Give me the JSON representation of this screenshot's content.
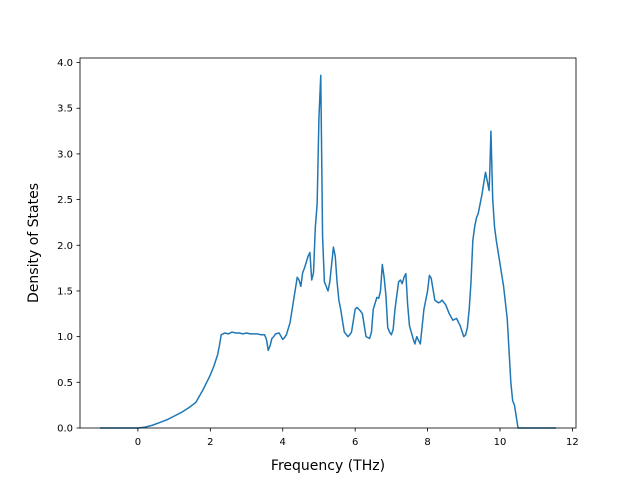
{
  "chart_data": {
    "type": "line",
    "title": "",
    "xlabel": "Frequency (THz)",
    "ylabel": "Density of States",
    "xlim": [
      -1.6,
      12.1
    ],
    "ylim": [
      0.0,
      4.05
    ],
    "xticks": [
      0,
      2,
      4,
      6,
      8,
      10,
      12
    ],
    "yticks": [
      0.0,
      0.5,
      1.0,
      1.5,
      2.0,
      2.5,
      3.0,
      3.5,
      4.0
    ],
    "xtick_labels": [
      "0",
      "2",
      "4",
      "6",
      "8",
      "10",
      "12"
    ],
    "ytick_labels": [
      "0.0",
      "0.5",
      "1.0",
      "1.5",
      "2.0",
      "2.5",
      "3.0",
      "3.5",
      "4.0"
    ],
    "grid": false,
    "series": [
      {
        "color": "#1f77b4",
        "x": [
          -1.05,
          -0.5,
          0.0,
          0.2,
          0.4,
          0.6,
          0.8,
          1.0,
          1.2,
          1.4,
          1.6,
          1.7,
          1.8,
          1.9,
          2.0,
          2.1,
          2.2,
          2.25,
          2.3,
          2.35,
          2.4,
          2.5,
          2.6,
          2.7,
          2.8,
          2.9,
          3.0,
          3.1,
          3.2,
          3.3,
          3.4,
          3.5,
          3.55,
          3.6,
          3.65,
          3.7,
          3.75,
          3.8,
          3.9,
          4.0,
          4.05,
          4.1,
          4.2,
          4.3,
          4.4,
          4.45,
          4.5,
          4.55,
          4.6,
          4.7,
          4.75,
          4.8,
          4.85,
          4.9,
          4.95,
          5.0,
          5.05,
          5.1,
          5.15,
          5.2,
          5.25,
          5.3,
          5.4,
          5.45,
          5.5,
          5.55,
          5.6,
          5.7,
          5.8,
          5.85,
          5.9,
          6.0,
          6.05,
          6.1,
          6.15,
          6.2,
          6.3,
          6.4,
          6.45,
          6.5,
          6.6,
          6.65,
          6.7,
          6.75,
          6.8,
          6.85,
          6.9,
          6.95,
          7.0,
          7.05,
          7.1,
          7.2,
          7.25,
          7.3,
          7.35,
          7.4,
          7.45,
          7.5,
          7.55,
          7.6,
          7.65,
          7.7,
          7.8,
          7.9,
          7.95,
          8.0,
          8.05,
          8.1,
          8.2,
          8.3,
          8.35,
          8.4,
          8.5,
          8.6,
          8.7,
          8.8,
          8.9,
          9.0,
          9.05,
          9.1,
          9.15,
          9.2,
          9.25,
          9.3,
          9.35,
          9.4,
          9.5,
          9.6,
          9.65,
          9.7,
          9.72,
          9.75,
          9.8,
          9.85,
          9.9,
          10.0,
          10.1,
          10.2,
          10.3,
          10.35,
          10.4,
          10.5,
          10.55,
          10.7,
          11.0,
          11.55
        ],
        "y": [
          0.0,
          0.0,
          0.0,
          0.01,
          0.03,
          0.06,
          0.09,
          0.13,
          0.17,
          0.22,
          0.28,
          0.35,
          0.42,
          0.5,
          0.58,
          0.68,
          0.8,
          0.9,
          1.02,
          1.03,
          1.04,
          1.03,
          1.05,
          1.04,
          1.04,
          1.03,
          1.04,
          1.03,
          1.03,
          1.03,
          1.02,
          1.02,
          0.97,
          0.85,
          0.9,
          0.98,
          1.0,
          1.03,
          1.04,
          0.97,
          0.99,
          1.02,
          1.15,
          1.4,
          1.65,
          1.62,
          1.55,
          1.7,
          1.75,
          1.88,
          1.92,
          1.62,
          1.7,
          2.2,
          2.45,
          3.4,
          3.86,
          2.1,
          1.6,
          1.55,
          1.5,
          1.6,
          1.98,
          1.88,
          1.6,
          1.4,
          1.3,
          1.05,
          1.0,
          1.02,
          1.05,
          1.3,
          1.32,
          1.3,
          1.28,
          1.25,
          1.0,
          0.98,
          1.05,
          1.3,
          1.43,
          1.42,
          1.5,
          1.79,
          1.65,
          1.45,
          1.1,
          1.05,
          1.02,
          1.08,
          1.3,
          1.6,
          1.62,
          1.58,
          1.65,
          1.69,
          1.35,
          1.12,
          1.05,
          0.98,
          0.92,
          1.0,
          0.92,
          1.3,
          1.4,
          1.5,
          1.67,
          1.64,
          1.4,
          1.37,
          1.38,
          1.4,
          1.35,
          1.25,
          1.18,
          1.2,
          1.12,
          1.0,
          1.02,
          1.1,
          1.3,
          1.6,
          2.05,
          2.2,
          2.3,
          2.35,
          2.55,
          2.8,
          2.7,
          2.6,
          2.82,
          3.25,
          2.5,
          2.2,
          2.05,
          1.8,
          1.55,
          1.2,
          0.5,
          0.3,
          0.25,
          0.0,
          0.0,
          0.0,
          0.0,
          0.0
        ]
      }
    ]
  }
}
